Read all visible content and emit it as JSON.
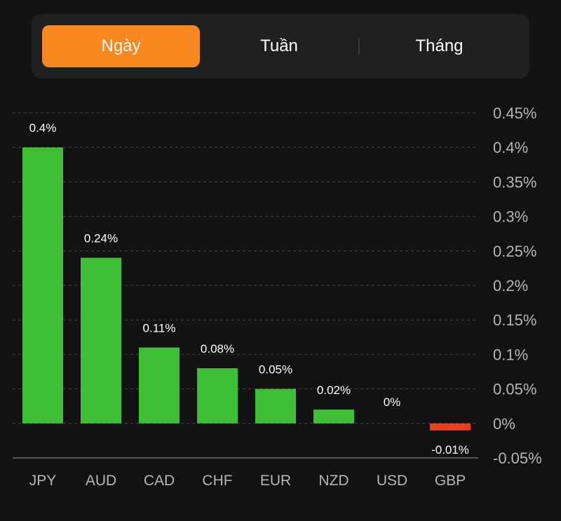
{
  "tabs": [
    {
      "label": "Ngày",
      "active": true
    },
    {
      "label": "Tuần",
      "active": false
    },
    {
      "label": "Tháng",
      "active": false
    }
  ],
  "colors": {
    "accent": "#f7871f",
    "positive": "#3fbf35",
    "negative": "#e8401f",
    "panel": "#1f2022",
    "background": "#121212"
  },
  "chart_data": {
    "type": "bar",
    "categories": [
      "JPY",
      "AUD",
      "CAD",
      "CHF",
      "EUR",
      "NZD",
      "USD",
      "GBP"
    ],
    "values": [
      0.4,
      0.24,
      0.11,
      0.08,
      0.05,
      0.02,
      0,
      -0.01
    ],
    "data_labels": [
      "0.4%",
      "0.24%",
      "0.11%",
      "0.08%",
      "0.05%",
      "0.02%",
      "0%",
      "-0.01%"
    ],
    "y_ticks": [
      0.45,
      0.4,
      0.35,
      0.3,
      0.25,
      0.2,
      0.15,
      0.1,
      0.05,
      0,
      -0.05
    ],
    "y_tick_labels": [
      "0.45%",
      "0.4%",
      "0.35%",
      "0.3%",
      "0.25%",
      "0.2%",
      "0.15%",
      "0.1%",
      "0.05%",
      "0%",
      "-0.05%"
    ],
    "ylim": [
      -0.05,
      0.45
    ],
    "y_axis_position": "right",
    "grid": true,
    "title": "",
    "xlabel": "",
    "ylabel": ""
  }
}
